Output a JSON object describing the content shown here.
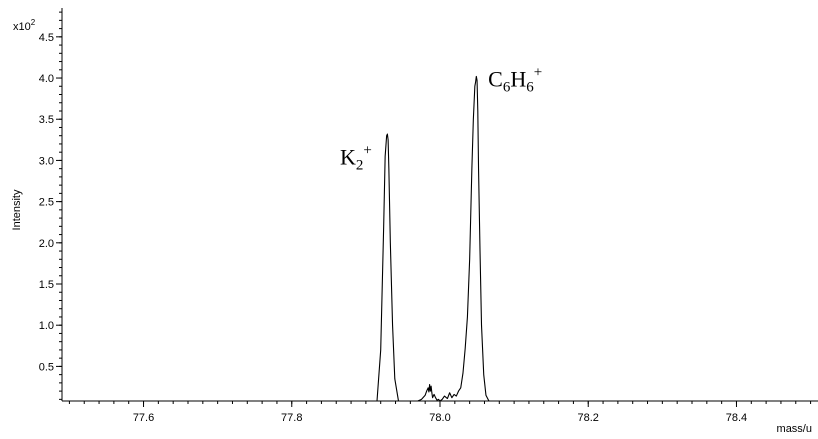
{
  "chart_data": {
    "type": "line",
    "title": "",
    "xlabel": "mass/u",
    "ylabel": "Intensity",
    "y_multiplier_label": "x10",
    "y_multiplier_exponent": "2",
    "xlim": [
      77.49,
      78.51
    ],
    "ylim": [
      0.08,
      4.85
    ],
    "x_ticks": [
      77.6,
      77.8,
      78.0,
      78.2,
      78.4
    ],
    "x_tick_labels": [
      "77.6",
      "77.8",
      "78.0",
      "78.2",
      "78.4"
    ],
    "y_ticks": [
      0.5,
      1.0,
      1.5,
      2.0,
      2.5,
      3.0,
      3.5,
      4.0,
      4.5
    ],
    "y_tick_labels": [
      "0.5",
      "1.0",
      "1.5",
      "2.0",
      "2.5",
      "3.0",
      "3.5",
      "4.0",
      "4.5"
    ],
    "grid": false,
    "annotations": [
      {
        "base": "K",
        "sub": "2",
        "sup": "+",
        "x": 77.865,
        "y": 2.95
      },
      {
        "base": "C",
        "sub": "6",
        "base2": "H",
        "sub2": "6",
        "sup": "+",
        "x": 78.065,
        "y": 3.9
      }
    ],
    "series": [
      {
        "x": [
          77.915,
          77.92,
          77.924,
          77.926,
          77.928,
          77.929,
          77.93,
          77.931,
          77.933,
          77.936,
          77.939,
          77.944,
          77.97,
          77.975,
          77.98,
          77.982,
          77.984,
          77.985,
          77.986,
          77.987,
          77.988,
          77.989,
          77.99,
          77.992,
          77.994,
          77.996,
          77.998,
          78.0,
          78.003,
          78.006,
          78.01,
          78.013,
          78.016,
          78.019,
          78.022,
          78.025,
          78.028,
          78.031,
          78.034,
          78.037,
          78.04,
          78.043,
          78.045,
          78.047,
          78.048,
          78.049,
          78.05,
          78.051,
          78.052,
          78.054,
          78.056,
          78.059,
          78.062,
          78.066
        ],
        "y": [
          0.08,
          0.7,
          2.2,
          3.05,
          3.3,
          3.32,
          3.25,
          2.9,
          2.0,
          1.0,
          0.35,
          0.08,
          0.08,
          0.1,
          0.15,
          0.2,
          0.24,
          0.19,
          0.28,
          0.2,
          0.26,
          0.18,
          0.12,
          0.16,
          0.12,
          0.09,
          0.1,
          0.08,
          0.1,
          0.14,
          0.11,
          0.18,
          0.12,
          0.16,
          0.14,
          0.2,
          0.24,
          0.42,
          0.72,
          1.1,
          1.8,
          2.9,
          3.5,
          3.9,
          3.95,
          4.02,
          3.97,
          3.6,
          2.9,
          1.9,
          1.0,
          0.4,
          0.15,
          0.08
        ]
      }
    ]
  }
}
